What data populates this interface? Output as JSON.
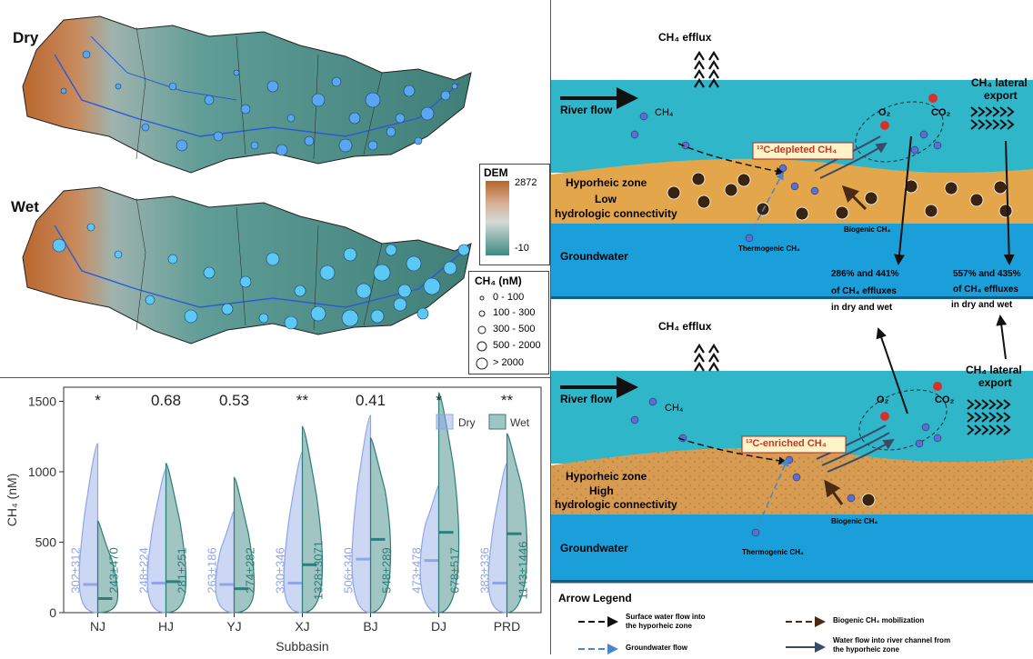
{
  "maps": {
    "dry_label": "Dry",
    "wet_label": "Wet",
    "dem_legend": {
      "title": "DEM",
      "max": "2872",
      "min": "-10"
    },
    "ch4_legend": {
      "title": "CH₄ (nM)",
      "classes": [
        "0 - 100",
        "100 - 300",
        "300 - 500",
        "500 - 2000",
        "> 2000"
      ]
    }
  },
  "violin": {
    "ylabel": "CH₄  (nM)",
    "xlabel": "Subbasin",
    "legend": [
      "Dry",
      "Wet"
    ],
    "colors": {
      "dry": "#8fa6e6",
      "wet": "#2d7f7a"
    },
    "significance": [
      "*",
      "0.68",
      "0.53",
      "**",
      "0.41",
      "*",
      "**"
    ]
  },
  "chart_data": {
    "type": "violin",
    "categories": [
      "NJ",
      "HJ",
      "YJ",
      "XJ",
      "BJ",
      "DJ",
      "PRD"
    ],
    "ylim": [
      0,
      1600
    ],
    "yticks": [
      0,
      500,
      1000,
      1500
    ],
    "xlabel": "Subbasin",
    "ylabel": "CH₄  (nM)",
    "series": [
      {
        "name": "Dry",
        "medians": [
          200,
          210,
          200,
          210,
          380,
          370,
          210
        ],
        "maxima": [
          1200,
          1020,
          720,
          1140,
          1400,
          900,
          1060
        ],
        "labels": [
          "302±312",
          "248±224",
          "263±186",
          "330±346",
          "506±340",
          "473±478",
          "383±336"
        ]
      },
      {
        "name": "Wet",
        "medians": [
          100,
          220,
          170,
          340,
          520,
          570,
          560
        ],
        "maxima": [
          650,
          1060,
          960,
          1320,
          1240,
          1560,
          1270
        ],
        "labels": [
          "243±470",
          "281±251",
          "274±282",
          "1328±3071",
          "548±289",
          "678±517",
          "1143±1446"
        ]
      }
    ]
  },
  "diagram": {
    "ch4_efflux": "CH₄ efflux",
    "ch4_lateral_line1": "CH₄ lateral",
    "ch4_lateral_line2": "export",
    "river_flow": "River flow",
    "ch4": "CH₄",
    "o2": "O₂",
    "co2": "CO₂",
    "depleted_box": "¹³C-depleted CH₄",
    "enriched_box": "¹³C-enriched CH₄",
    "hyporheic": "Hyporheic zone",
    "low_conn_1": "Low",
    "low_conn_2": "hydrologic connectivity",
    "high_conn_1": "High",
    "high_conn_2": "hydrologic connectivity",
    "groundwater": "Groundwater",
    "thermogenic": "Thermogenic CH₄",
    "biogenic": "Biogenic CH₄",
    "pct_left_1": "286% and 441%",
    "pct_left_2": "of CH₄ effluxes",
    "pct_left_3": "in dry and wet",
    "pct_right_1": "557% and 435%",
    "pct_right_2": "of CH₄ effluxes",
    "pct_right_3": "in dry and wet",
    "arrow_legend_title": "Arrow Legend",
    "leg_surface_1": "Surface water flow into",
    "leg_surface_2": "the hyporheic zone",
    "leg_ground": "Groundwater flow",
    "leg_biogenic": "Biogenic CH₄ mobilization",
    "leg_water_1": "Water flow into river channel from",
    "leg_water_2": "the hyporheic zone"
  }
}
